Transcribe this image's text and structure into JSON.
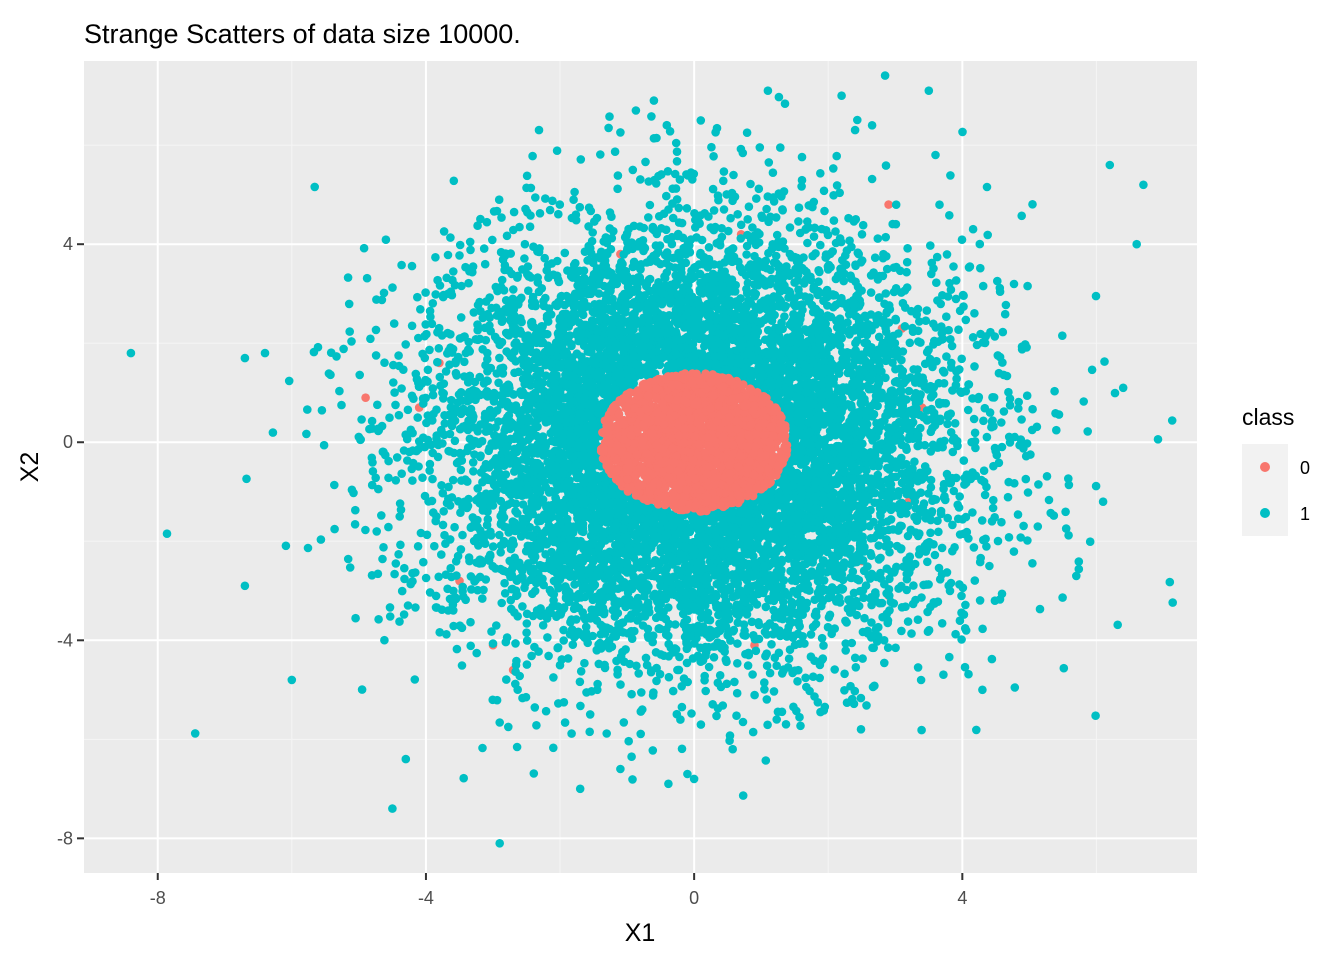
{
  "chart_data": {
    "type": "scatter",
    "title": "Strange Scatters of data size 10000.",
    "xlabel": "X1",
    "ylabel": "X2",
    "xlim": [
      -9.1,
      7.5
    ],
    "ylim": [
      -8.7,
      7.7
    ],
    "x_ticks": [
      -8,
      -4,
      0,
      4
    ],
    "y_ticks": [
      -8,
      -4,
      0,
      4
    ],
    "x_tick_labels": [
      "-8",
      "-4",
      "0",
      "4"
    ],
    "y_tick_labels": [
      "-8",
      "-4",
      "0",
      "4"
    ],
    "grid": true,
    "legend": {
      "title": "class",
      "placement": "right",
      "entries": [
        {
          "label": "0",
          "color": "#F8766D"
        },
        {
          "label": "1",
          "color": "#00BFC4"
        }
      ]
    },
    "n_points": 10000,
    "series": [
      {
        "name": "1",
        "color": "#00BFC4",
        "distribution": "outside radius 1.4, spread about X1 sd 1.9, X2 sd 2.1",
        "points": [
          [
            -8.4,
            1.8
          ],
          [
            -6.7,
            1.7
          ],
          [
            -6.4,
            1.8
          ],
          [
            -6.7,
            -2.9
          ],
          [
            -6.0,
            -4.8
          ],
          [
            -4.5,
            -7.4
          ],
          [
            -4.3,
            -6.4
          ],
          [
            -2.9,
            -8.1
          ],
          [
            0.0,
            -6.8
          ],
          [
            -0.1,
            -6.7
          ],
          [
            -1.7,
            -7.0
          ],
          [
            -1.1,
            -6.6
          ],
          [
            4.3,
            -5.0
          ],
          [
            5.7,
            -2.7
          ],
          [
            6.1,
            -1.2
          ],
          [
            6.4,
            1.1
          ],
          [
            6.6,
            4.0
          ],
          [
            6.7,
            5.2
          ],
          [
            6.2,
            5.6
          ],
          [
            3.5,
            7.1
          ],
          [
            1.1,
            7.1
          ],
          [
            2.2,
            7.0
          ],
          [
            -0.6,
            6.9
          ],
          [
            0.1,
            6.5
          ],
          [
            -0.4,
            -1.7
          ],
          [
            0.5,
            -1.8
          ],
          [
            -1.6,
            -0.5
          ],
          [
            1.7,
            0.4
          ],
          [
            -1.5,
            1.0
          ],
          [
            1.6,
            -1.1
          ],
          [
            0.3,
            1.9
          ],
          [
            -0.5,
            2.2
          ]
        ]
      },
      {
        "name": "0",
        "color": "#F8766D",
        "distribution": "inside radius 1.4 plus scattered outliers",
        "points": [
          [
            -4.9,
            0.9
          ],
          [
            -3.8,
            1.6
          ],
          [
            -2.7,
            2.2
          ],
          [
            2.9,
            4.8
          ],
          [
            3.1,
            2.3
          ],
          [
            3.4,
            0.7
          ],
          [
            2.9,
            -3.1
          ],
          [
            2.5,
            -2.4
          ],
          [
            0.9,
            -4.1
          ],
          [
            -2.7,
            -4.6
          ],
          [
            -3.0,
            -4.1
          ],
          [
            -3.5,
            -2.8
          ],
          [
            -1.1,
            3.8
          ],
          [
            0.7,
            4.2
          ],
          [
            -4.1,
            0.7
          ],
          [
            3.2,
            -1.2
          ]
        ]
      }
    ]
  }
}
